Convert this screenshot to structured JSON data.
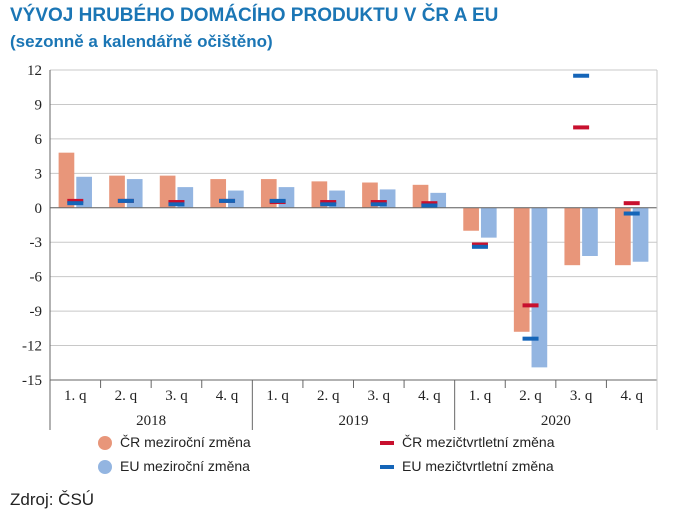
{
  "header": {
    "title": "VÝVOJ HRUBÉHO DOMÁCÍHO PRODUKTU V ČR A EU",
    "subtitle": "(sezonně a kalendářně očištěno)"
  },
  "colors": {
    "cz_yoy": "#e8967a",
    "eu_yoy": "#93b5e1",
    "cz_qoq": "#c8102e",
    "eu_qoq": "#1565b8",
    "title": "#1b76b5"
  },
  "chart_data": {
    "type": "bar",
    "title": "VÝVOJ HRUBÉHO DOMÁCÍHO PRODUKTU V ČR A EU",
    "subtitle": "(sezonně a kalendářně očištěno)",
    "ylim": [
      -15,
      12
    ],
    "yticks": [
      12,
      9,
      6,
      3,
      0,
      -3,
      -6,
      -9,
      -12,
      -15
    ],
    "grid": true,
    "categories": [
      "1. q",
      "2. q",
      "3. q",
      "4. q",
      "1. q",
      "2. q",
      "3. q",
      "4. q",
      "1. q",
      "2. q",
      "3. q",
      "4. q"
    ],
    "years": [
      "2018",
      "2019",
      "2020"
    ],
    "series": [
      {
        "name": "ČR meziroční změna",
        "kind": "bar",
        "values": [
          4.8,
          2.8,
          2.8,
          2.5,
          2.5,
          2.3,
          2.2,
          2.0,
          -2.0,
          -10.8,
          -5.0,
          -5.0
        ]
      },
      {
        "name": "EU meziroční změna",
        "kind": "bar",
        "values": [
          2.7,
          2.5,
          1.8,
          1.5,
          1.8,
          1.5,
          1.6,
          1.3,
          -2.6,
          -13.9,
          -4.2,
          -4.7
        ]
      },
      {
        "name": "ČR mezičtvrtletní změna",
        "kind": "marker",
        "values": [
          0.6,
          0.6,
          0.5,
          0.6,
          0.5,
          0.5,
          0.5,
          0.4,
          -3.2,
          -8.5,
          7.0,
          0.4
        ]
      },
      {
        "name": "EU mezičtvrtletní změna",
        "kind": "marker",
        "values": [
          0.4,
          0.6,
          0.3,
          0.6,
          0.6,
          0.3,
          0.3,
          0.2,
          -3.4,
          -11.4,
          11.5,
          -0.5
        ]
      }
    ],
    "legend_position": "bottom"
  },
  "legend": {
    "cz_yoy": "ČR meziroční změna",
    "eu_yoy": "EU meziroční změna",
    "cz_qoq": "ČR mezičtvrtletní změna",
    "eu_qoq": "EU mezičtvrtletní změna"
  },
  "source": "Zdroj: ČSÚ"
}
